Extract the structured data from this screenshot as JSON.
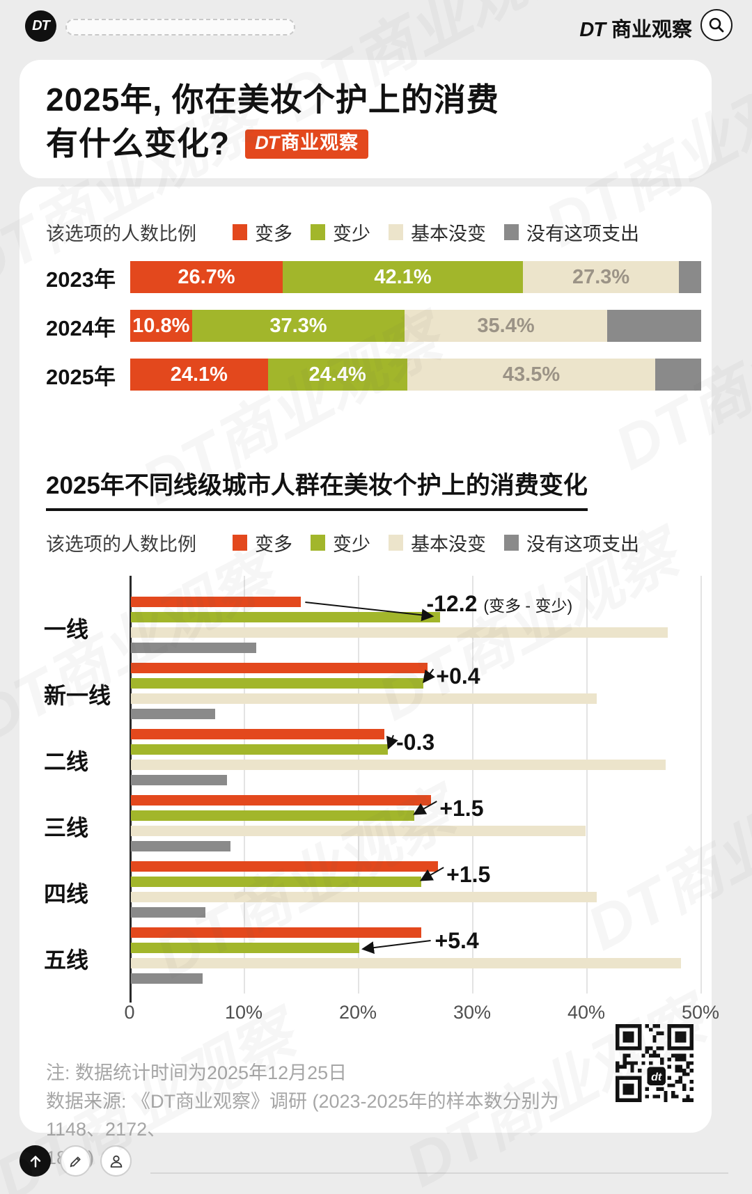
{
  "colors": {
    "accent_red": "#e3481d",
    "green": "#a2b62b",
    "beige": "#ece4cb",
    "bar_gray": "#8a8a8a",
    "beige_label_text": "#9b9386"
  },
  "top_bar": {
    "logo_text": "DT",
    "brand_dt": "DT",
    "brand_name": "商业观察"
  },
  "hero": {
    "title_line1": "2025年, 你在美妆个护上的消费",
    "title_line2": "有什么变化?",
    "badge_dt": "DT",
    "badge_name": "商业观察"
  },
  "legend": {
    "caption": "该选项的人数比例",
    "items": [
      {
        "label": "变多",
        "color": "#e3481d"
      },
      {
        "label": "变少",
        "color": "#a2b62b"
      },
      {
        "label": "基本没变",
        "color": "#ece4cb"
      },
      {
        "label": "没有这项支出",
        "color": "#8a8a8a"
      }
    ]
  },
  "chart_data": [
    {
      "type": "bar",
      "variant": "horizontal-stacked",
      "title": "2025年, 你在美妆个护上的消费有什么变化?",
      "categories": [
        "2023年",
        "2024年",
        "2025年"
      ],
      "series": [
        {
          "name": "变多",
          "color": "#e3481d",
          "values": [
            26.7,
            10.8,
            24.1
          ],
          "label_color": "#ffffff"
        },
        {
          "name": "变少",
          "color": "#a2b62b",
          "values": [
            42.1,
            37.3,
            24.4
          ],
          "label_color": "#ffffff"
        },
        {
          "name": "基本没变",
          "color": "#ece4cb",
          "values": [
            27.3,
            35.4,
            43.5
          ],
          "label_color": "#9b9386"
        },
        {
          "name": "没有这项支出",
          "color": "#8a8a8a",
          "values": [
            3.9,
            16.5,
            8.0
          ],
          "show_labels": false
        }
      ],
      "xlim": [
        0,
        100
      ],
      "value_suffix": "%",
      "legend_position": "top"
    },
    {
      "type": "bar",
      "variant": "horizontal-grouped",
      "title": "2025年不同线级城市人群在美妆个护上的消费变化",
      "categories": [
        "一线",
        "新一线",
        "二线",
        "三线",
        "四线",
        "五线"
      ],
      "series": [
        {
          "name": "变多",
          "color": "#e3481d",
          "values": [
            14.9,
            26.0,
            22.2,
            26.3,
            26.9,
            25.4
          ]
        },
        {
          "name": "变少",
          "color": "#a2b62b",
          "values": [
            27.1,
            25.6,
            22.5,
            24.8,
            25.4,
            20.0
          ]
        },
        {
          "name": "基本没变",
          "color": "#ece4cb",
          "values": [
            47.0,
            40.8,
            46.8,
            39.8,
            40.8,
            48.2
          ]
        },
        {
          "name": "没有这项支出",
          "color": "#8a8a8a",
          "values": [
            11.0,
            7.4,
            8.4,
            8.7,
            6.5,
            6.3
          ]
        }
      ],
      "annotations": [
        {
          "value": "-12.2",
          "note": "(变多 - 变少)"
        },
        {
          "value": "+0.4"
        },
        {
          "value": "-0.3"
        },
        {
          "value": "+1.5"
        },
        {
          "value": "+1.5"
        },
        {
          "value": "+5.4"
        }
      ],
      "x_ticks": [
        "0",
        "10%",
        "20%",
        "30%",
        "40%",
        "50%"
      ],
      "xlim": [
        0,
        50
      ],
      "grid": true,
      "legend_position": "top"
    }
  ],
  "footnote": {
    "lines": [
      "注: 数据统计时间为2025年12月25日",
      "数据来源: 《DT商业观察》调研 (2023-2025年的样本数分别为1148、2172、",
      "1871)"
    ]
  },
  "watermark": "DT商业观察"
}
